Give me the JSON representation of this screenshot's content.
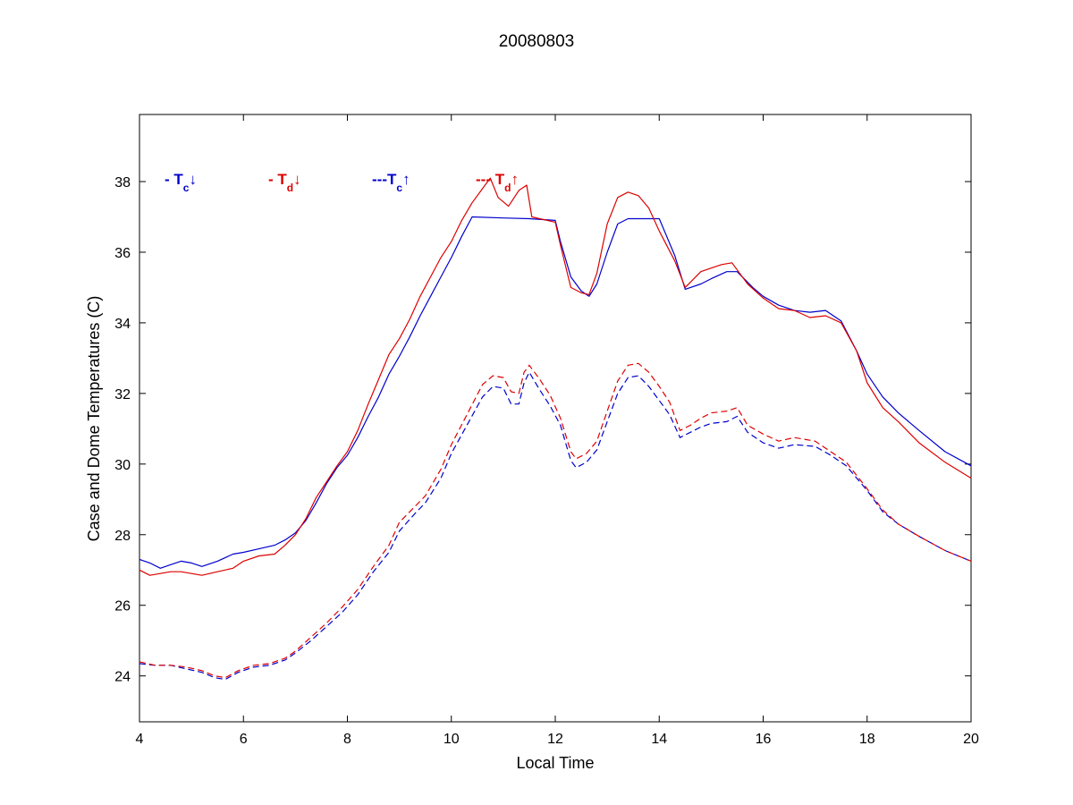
{
  "chart_data": {
    "type": "line",
    "title": "20080803",
    "xlabel": "Local Time",
    "ylabel": "Case and Dome Temperatures (C)",
    "xlim": [
      4,
      20
    ],
    "ylim": [
      22.7,
      39.9
    ],
    "xticks": [
      4,
      6,
      8,
      10,
      12,
      14,
      16,
      18,
      20
    ],
    "yticks": [
      24,
      26,
      28,
      30,
      32,
      34,
      36,
      38
    ],
    "grid": false,
    "legend_position": "top-left inside",
    "colors": {
      "blue": "#0000cc",
      "red": "#dd0000"
    },
    "legend": [
      {
        "prefix": "- T",
        "sub": "c",
        "arrow": "↓",
        "color": "#0000cc"
      },
      {
        "prefix": "- T",
        "sub": "d",
        "arrow": "↓",
        "color": "#dd0000"
      },
      {
        "prefix": "---T",
        "sub": "c",
        "arrow": "↑",
        "color": "#0000cc"
      },
      {
        "prefix": "--- T",
        "sub": "d",
        "arrow": "↑",
        "color": "#dd0000"
      }
    ],
    "series": [
      {
        "color": "#0000cc",
        "dash": "solid",
        "x": [
          4.0,
          4.2,
          4.4,
          4.6,
          4.8,
          5.0,
          5.2,
          5.5,
          5.8,
          6.0,
          6.3,
          6.6,
          6.8,
          7.0,
          7.2,
          7.4,
          7.6,
          7.8,
          8.0,
          8.2,
          8.4,
          8.6,
          8.8,
          9.0,
          9.2,
          9.4,
          9.6,
          9.8,
          10.0,
          10.2,
          10.4,
          11.0,
          11.5,
          12.0,
          12.1,
          12.3,
          12.5,
          12.65,
          12.8,
          13.0,
          13.2,
          13.4,
          14.0,
          14.3,
          14.5,
          14.8,
          15.0,
          15.3,
          15.5,
          15.8,
          16.0,
          16.3,
          16.6,
          16.9,
          17.2,
          17.5,
          17.8,
          18.0,
          18.3,
          18.6,
          19.0,
          19.5,
          20.0
        ],
        "y": [
          27.3,
          27.2,
          27.05,
          27.15,
          27.25,
          27.2,
          27.1,
          27.25,
          27.45,
          27.5,
          27.6,
          27.7,
          27.85,
          28.05,
          28.4,
          28.9,
          29.45,
          29.9,
          30.25,
          30.75,
          31.35,
          31.9,
          32.55,
          33.05,
          33.6,
          34.2,
          34.75,
          35.3,
          35.85,
          36.45,
          37.0,
          36.97,
          36.95,
          36.9,
          36.3,
          35.3,
          34.9,
          34.75,
          35.1,
          36.0,
          36.8,
          36.95,
          36.95,
          35.9,
          34.95,
          35.1,
          35.25,
          35.45,
          35.45,
          35.0,
          34.75,
          34.5,
          34.35,
          34.3,
          34.35,
          34.05,
          33.2,
          32.55,
          31.9,
          31.45,
          30.95,
          30.35,
          29.95
        ]
      },
      {
        "color": "#dd0000",
        "dash": "solid",
        "x": [
          4.0,
          4.2,
          4.4,
          4.6,
          4.8,
          5.0,
          5.2,
          5.5,
          5.8,
          6.0,
          6.3,
          6.6,
          6.8,
          7.0,
          7.2,
          7.4,
          7.6,
          7.8,
          8.0,
          8.2,
          8.4,
          8.6,
          8.8,
          9.0,
          9.2,
          9.4,
          9.6,
          9.8,
          10.0,
          10.2,
          10.4,
          10.6,
          10.75,
          10.9,
          11.1,
          11.3,
          11.45,
          11.55,
          11.7,
          12.0,
          12.1,
          12.3,
          12.5,
          12.65,
          12.8,
          13.0,
          13.2,
          13.4,
          13.6,
          13.8,
          14.0,
          14.3,
          14.5,
          14.8,
          15.0,
          15.2,
          15.4,
          15.5,
          15.7,
          16.0,
          16.3,
          16.6,
          16.9,
          17.2,
          17.5,
          17.8,
          18.0,
          18.3,
          18.6,
          19.0,
          19.5,
          20.0
        ],
        "y": [
          27.0,
          26.85,
          26.9,
          26.95,
          26.95,
          26.9,
          26.85,
          26.95,
          27.05,
          27.25,
          27.4,
          27.45,
          27.7,
          28.0,
          28.45,
          29.05,
          29.5,
          29.95,
          30.35,
          30.95,
          31.7,
          32.4,
          33.1,
          33.55,
          34.1,
          34.75,
          35.3,
          35.85,
          36.3,
          36.9,
          37.4,
          37.8,
          38.1,
          37.55,
          37.3,
          37.75,
          37.9,
          37.0,
          36.95,
          36.85,
          36.2,
          35.0,
          34.85,
          34.8,
          35.4,
          36.8,
          37.55,
          37.7,
          37.6,
          37.25,
          36.6,
          35.75,
          35.0,
          35.45,
          35.55,
          35.65,
          35.7,
          35.5,
          35.1,
          34.7,
          34.4,
          34.35,
          34.15,
          34.2,
          34.0,
          33.2,
          32.3,
          31.6,
          31.2,
          30.6,
          30.05,
          29.6
        ]
      },
      {
        "color": "#0000cc",
        "dash": "dashed",
        "x": [
          4.0,
          4.3,
          4.6,
          4.9,
          5.2,
          5.45,
          5.65,
          5.9,
          6.2,
          6.5,
          6.8,
          7.0,
          7.3,
          7.6,
          7.9,
          8.2,
          8.5,
          8.8,
          9.0,
          9.3,
          9.5,
          9.8,
          10.0,
          10.3,
          10.6,
          10.8,
          11.0,
          11.15,
          11.3,
          11.4,
          11.5,
          11.7,
          11.9,
          12.1,
          12.3,
          12.4,
          12.6,
          12.8,
          13.0,
          13.2,
          13.4,
          13.6,
          13.8,
          14.0,
          14.2,
          14.4,
          14.6,
          14.8,
          15.0,
          15.3,
          15.5,
          15.7,
          16.0,
          16.3,
          16.6,
          17.0,
          17.3,
          17.6,
          18.0,
          18.3,
          18.6,
          19.0,
          19.5,
          20.0
        ],
        "y": [
          24.35,
          24.3,
          24.3,
          24.2,
          24.1,
          23.95,
          23.9,
          24.1,
          24.25,
          24.3,
          24.45,
          24.65,
          25.0,
          25.4,
          25.8,
          26.3,
          26.95,
          27.5,
          28.1,
          28.6,
          28.9,
          29.6,
          30.3,
          31.1,
          31.9,
          32.2,
          32.15,
          31.7,
          31.7,
          32.3,
          32.6,
          32.1,
          31.65,
          31.1,
          30.1,
          29.9,
          30.05,
          30.4,
          31.2,
          32.0,
          32.45,
          32.5,
          32.2,
          31.8,
          31.4,
          30.75,
          30.9,
          31.05,
          31.15,
          31.2,
          31.35,
          30.9,
          30.6,
          30.45,
          30.55,
          30.5,
          30.25,
          29.95,
          29.25,
          28.65,
          28.3,
          27.95,
          27.55,
          27.25
        ]
      },
      {
        "color": "#dd0000",
        "dash": "dashed",
        "x": [
          4.0,
          4.3,
          4.6,
          4.9,
          5.2,
          5.45,
          5.65,
          5.9,
          6.2,
          6.5,
          6.8,
          7.0,
          7.3,
          7.6,
          7.9,
          8.2,
          8.5,
          8.8,
          9.0,
          9.3,
          9.5,
          9.8,
          10.0,
          10.3,
          10.6,
          10.8,
          11.0,
          11.15,
          11.3,
          11.4,
          11.5,
          11.7,
          11.9,
          12.1,
          12.3,
          12.4,
          12.6,
          12.8,
          13.0,
          13.2,
          13.4,
          13.6,
          13.8,
          14.0,
          14.2,
          14.4,
          14.6,
          14.8,
          15.0,
          15.3,
          15.5,
          15.7,
          16.0,
          16.3,
          16.6,
          17.0,
          17.3,
          17.6,
          18.0,
          18.3,
          18.6,
          19.0,
          19.5,
          20.0
        ],
        "y": [
          24.4,
          24.3,
          24.3,
          24.25,
          24.15,
          24.0,
          23.95,
          24.15,
          24.3,
          24.35,
          24.5,
          24.7,
          25.1,
          25.5,
          25.95,
          26.45,
          27.1,
          27.7,
          28.35,
          28.8,
          29.1,
          29.85,
          30.55,
          31.4,
          32.25,
          32.5,
          32.45,
          32.05,
          32.0,
          32.6,
          32.8,
          32.4,
          31.95,
          31.3,
          30.35,
          30.15,
          30.3,
          30.65,
          31.5,
          32.35,
          32.8,
          32.85,
          32.6,
          32.2,
          31.75,
          30.95,
          31.1,
          31.3,
          31.45,
          31.5,
          31.6,
          31.1,
          30.85,
          30.65,
          30.75,
          30.65,
          30.35,
          30.05,
          29.3,
          28.7,
          28.3,
          27.95,
          27.55,
          27.25
        ]
      }
    ]
  }
}
